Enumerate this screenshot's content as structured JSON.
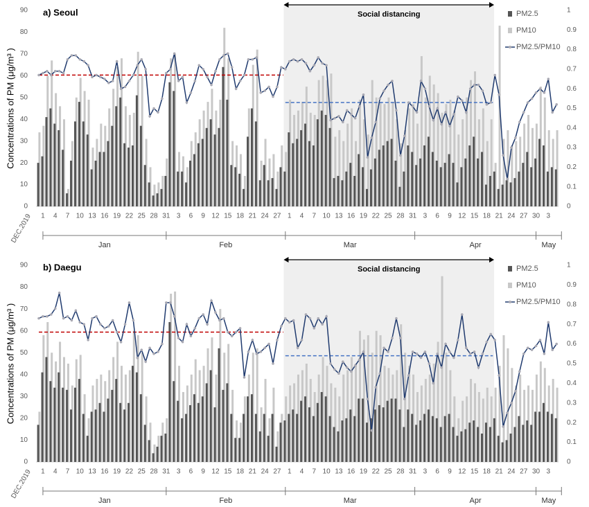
{
  "chart_data": [
    {
      "type": "bar_line",
      "title": "a) Seoul",
      "ylabel": "Concentrations of PM (μg/m³ )",
      "annotation": "Social distancing",
      "categories": [
        "DEC.2019",
        "1",
        null,
        null,
        "4",
        null,
        null,
        "7",
        null,
        null,
        "10",
        null,
        null,
        "13",
        null,
        null,
        "16",
        null,
        null,
        "19",
        null,
        null,
        "22",
        null,
        null,
        "25",
        null,
        null,
        "28",
        null,
        null,
        "31",
        null,
        null,
        "3",
        null,
        null,
        "6",
        null,
        null,
        "9",
        null,
        null,
        "12",
        null,
        null,
        "15",
        null,
        null,
        "18",
        null,
        null,
        "21",
        null,
        null,
        "24",
        null,
        null,
        "27",
        null,
        null,
        "1",
        null,
        null,
        "4",
        null,
        null,
        "7",
        null,
        null,
        "10",
        null,
        null,
        "13",
        null,
        null,
        "16",
        null,
        null,
        "19",
        null,
        null,
        "22",
        null,
        null,
        "25",
        null,
        null,
        "28",
        null,
        null,
        "31",
        null,
        null,
        "3",
        null,
        null,
        "6",
        null,
        null,
        "9",
        null,
        null,
        "12",
        null,
        null,
        "15",
        null,
        null,
        "18",
        null,
        null,
        "21",
        null,
        null,
        "24",
        null,
        null,
        "27",
        null,
        null,
        "30",
        null,
        null,
        "3",
        null,
        null
      ],
      "months": [
        "Jan",
        "Feb",
        "Mar",
        "Apr",
        "May"
      ],
      "ylim": [
        0,
        90
      ],
      "yticks": [
        0,
        10,
        20,
        30,
        40,
        50,
        60,
        70,
        80,
        90
      ],
      "y2lim": [
        0,
        1
      ],
      "y2ticks": [
        0,
        0.1,
        0.2,
        0.3,
        0.4,
        0.5,
        0.6,
        0.7,
        0.8,
        0.9,
        1
      ],
      "legend": "top-right",
      "reference_lines": [
        {
          "value": 0.67,
          "color": "#c00000",
          "axis": "y2"
        },
        {
          "value": 0.53,
          "color": "#4472c4",
          "axis": "y2"
        }
      ],
      "series": [
        {
          "name": "PM2.5",
          "type": "bar",
          "color": "#555555",
          "values": [
            20,
            23,
            41,
            45,
            38,
            35,
            26,
            6,
            21,
            39,
            48,
            39,
            33,
            17,
            21,
            25,
            25,
            30,
            37,
            46,
            50,
            29,
            27,
            28,
            51,
            37,
            19,
            11,
            5,
            6,
            8,
            14,
            57,
            53,
            16,
            16,
            11,
            21,
            24,
            29,
            31,
            36,
            40,
            33,
            36,
            64,
            49,
            19,
            18,
            15,
            8,
            32,
            45,
            39,
            12,
            19,
            12,
            13,
            8,
            18,
            16,
            34,
            29,
            31,
            35,
            38,
            30,
            28,
            40,
            44,
            42,
            36,
            13,
            14,
            12,
            16,
            20,
            14,
            24,
            18,
            8,
            17,
            22,
            26,
            28,
            30,
            31,
            21,
            9,
            16,
            28,
            25,
            19,
            22,
            28,
            32,
            25,
            21,
            18,
            20,
            24,
            20,
            11,
            18,
            22,
            28,
            32,
            22,
            25,
            10,
            14,
            16,
            8,
            10,
            12,
            11,
            13,
            16,
            20,
            25,
            18,
            22,
            31,
            28,
            16,
            18,
            17
          ]
        },
        {
          "name": "PM10",
          "type": "bar",
          "color": "#c8c8c8",
          "values": [
            34,
            37,
            60,
            67,
            52,
            46,
            40,
            8,
            30,
            50,
            59,
            53,
            49,
            27,
            31,
            38,
            37,
            45,
            54,
            64,
            68,
            46,
            42,
            43,
            71,
            60,
            31,
            18,
            10,
            11,
            14,
            22,
            68,
            70,
            25,
            23,
            18,
            30,
            34,
            40,
            44,
            48,
            54,
            44,
            49,
            82,
            68,
            30,
            28,
            24,
            14,
            45,
            65,
            72,
            21,
            31,
            22,
            24,
            16,
            28,
            25,
            49,
            42,
            44,
            48,
            55,
            43,
            42,
            58,
            60,
            58,
            61,
            32,
            35,
            30,
            38,
            45,
            30,
            49,
            40,
            33,
            58,
            50,
            48,
            47,
            50,
            48,
            40,
            29,
            35,
            45,
            47,
            38,
            69,
            50,
            60,
            56,
            52,
            43,
            47,
            49,
            44,
            33,
            40,
            50,
            58,
            62,
            40,
            45,
            30,
            40,
            20,
            83,
            31,
            35,
            28,
            30,
            32,
            38,
            42,
            36,
            38,
            55,
            50,
            35,
            31,
            35
          ]
        },
        {
          "name": "PM2.5/PM10",
          "type": "line",
          "axis": "y2",
          "color": "#1f3a6e",
          "marker_color": "#a9a9b3",
          "values": [
            0.67,
            0.68,
            0.69,
            0.67,
            0.69,
            0.69,
            0.68,
            0.75,
            0.77,
            0.77,
            0.75,
            0.74,
            0.72,
            0.66,
            0.67,
            0.66,
            0.65,
            0.63,
            0.64,
            0.74,
            0.6,
            0.61,
            0.64,
            0.67,
            0.72,
            0.75,
            0.7,
            0.46,
            0.5,
            0.48,
            0.55,
            0.68,
            0.7,
            0.78,
            0.64,
            0.66,
            0.53,
            0.58,
            0.64,
            0.72,
            0.7,
            0.66,
            0.62,
            0.69,
            0.75,
            0.77,
            0.78,
            0.71,
            0.6,
            0.64,
            0.67,
            0.75,
            0.75,
            0.76,
            0.58,
            0.59,
            0.61,
            0.56,
            0.61,
            0.71,
            0.7,
            0.74,
            0.75,
            0.74,
            0.75,
            0.73,
            0.69,
            0.72,
            0.76,
            0.73,
            0.72,
            0.44,
            0.45,
            0.46,
            0.43,
            0.49,
            0.47,
            0.45,
            0.51,
            0.57,
            0.25,
            0.35,
            0.43,
            0.55,
            0.59,
            0.62,
            0.64,
            0.49,
            0.26,
            0.36,
            0.53,
            0.51,
            0.48,
            0.64,
            0.6,
            0.51,
            0.44,
            0.5,
            0.42,
            0.48,
            0.41,
            0.47,
            0.56,
            0.54,
            0.48,
            0.6,
            0.62,
            0.62,
            0.59,
            0.52,
            0.53,
            0.67,
            0.57,
            0.26,
            0.14,
            0.3,
            0.35,
            0.43,
            0.48,
            0.53,
            0.55,
            0.58,
            0.6,
            0.58,
            0.65,
            0.48,
            0.52
          ]
        }
      ]
    },
    {
      "type": "bar_line",
      "title": "b) Daegu",
      "ylabel": "Concentrations of PM (μg/m³ )",
      "annotation": "Social distancing",
      "categories": [
        "DEC.2019",
        "1",
        null,
        null,
        "4",
        null,
        null,
        "7",
        null,
        null,
        "10",
        null,
        null,
        "13",
        null,
        null,
        "16",
        null,
        null,
        "19",
        null,
        null,
        "22",
        null,
        null,
        "25",
        null,
        null,
        "28",
        null,
        null,
        "31",
        null,
        null,
        "3",
        null,
        null,
        "6",
        null,
        null,
        "9",
        null,
        null,
        "12",
        null,
        null,
        "15",
        null,
        null,
        "18",
        null,
        null,
        "21",
        null,
        null,
        "24",
        null,
        null,
        "27",
        null,
        null,
        "1",
        null,
        null,
        "4",
        null,
        null,
        "7",
        null,
        null,
        "10",
        null,
        null,
        "13",
        null,
        null,
        "16",
        null,
        null,
        "19",
        null,
        null,
        "22",
        null,
        null,
        "25",
        null,
        null,
        "28",
        null,
        null,
        "31",
        null,
        null,
        "3",
        null,
        null,
        "6",
        null,
        null,
        "9",
        null,
        null,
        "12",
        null,
        null,
        "15",
        null,
        null,
        "18",
        null,
        null,
        "21",
        null,
        null,
        "24",
        null,
        null,
        "27",
        null,
        null,
        "30",
        null,
        null,
        "3",
        null,
        null
      ],
      "months": [
        "Jan",
        "Feb",
        "Mar",
        "Apr",
        "May"
      ],
      "ylim": [
        0,
        90
      ],
      "yticks": [
        0,
        10,
        20,
        30,
        40,
        50,
        60,
        70,
        80,
        90
      ],
      "y2lim": [
        0,
        1
      ],
      "y2ticks": [
        0,
        0.1,
        0.2,
        0.3,
        0.4,
        0.5,
        0.6,
        0.7,
        0.8,
        0.9,
        1
      ],
      "legend": "top-right",
      "reference_lines": [
        {
          "value": 0.66,
          "color": "#c00000",
          "axis": "y2"
        },
        {
          "value": 0.54,
          "color": "#4472c4",
          "axis": "y2"
        }
      ],
      "series": [
        {
          "name": "PM2.5",
          "type": "bar",
          "color": "#555555",
          "values": [
            17,
            41,
            48,
            37,
            34,
            41,
            34,
            33,
            24,
            34,
            38,
            22,
            12,
            23,
            24,
            27,
            23,
            29,
            33,
            38,
            27,
            24,
            27,
            44,
            41,
            31,
            17,
            10,
            4,
            7,
            12,
            13,
            64,
            37,
            28,
            20,
            22,
            26,
            31,
            27,
            30,
            36,
            42,
            25,
            52,
            33,
            36,
            22,
            11,
            11,
            22,
            30,
            31,
            22,
            14,
            22,
            12,
            22,
            7,
            18,
            19,
            22,
            24,
            22,
            28,
            30,
            25,
            21,
            27,
            32,
            30,
            21,
            16,
            14,
            19,
            20,
            24,
            21,
            29,
            29,
            18,
            20,
            24,
            26,
            25,
            28,
            29,
            29,
            24,
            16,
            24,
            22,
            17,
            19,
            22,
            24,
            21,
            20,
            16,
            21,
            22,
            16,
            12,
            14,
            15,
            18,
            19,
            16,
            13,
            18,
            16,
            20,
            12,
            9,
            10,
            13,
            16,
            21,
            17,
            19,
            17,
            23,
            23,
            27,
            23,
            22,
            20
          ]
        },
        {
          "name": "PM10",
          "type": "bar",
          "color": "#c8c8c8",
          "values": [
            23,
            58,
            64,
            50,
            46,
            55,
            48,
            45,
            35,
            47,
            49,
            31,
            20,
            35,
            38,
            40,
            37,
            42,
            48,
            55,
            44,
            40,
            42,
            60,
            58,
            50,
            30,
            18,
            8,
            12,
            18,
            20,
            77,
            78,
            44,
            32,
            35,
            40,
            47,
            42,
            44,
            52,
            57,
            40,
            70,
            50,
            54,
            33,
            19,
            18,
            30,
            40,
            50,
            52,
            25,
            38,
            20,
            34,
            14,
            22,
            30,
            35,
            36,
            40,
            42,
            45,
            38,
            32,
            40,
            48,
            44,
            36,
            34,
            30,
            40,
            42,
            48,
            45,
            60,
            56,
            58,
            50,
            60,
            58,
            44,
            43,
            40,
            42,
            63,
            50,
            44,
            40,
            32,
            35,
            38,
            40,
            45,
            55,
            85,
            50,
            42,
            30,
            20,
            28,
            30,
            38,
            36,
            32,
            29,
            34,
            30,
            34,
            44,
            58,
            52,
            43,
            35,
            40,
            33,
            35,
            33,
            40,
            46,
            43,
            35,
            38,
            34
          ]
        },
        {
          "name": "PM2.5/PM10",
          "type": "line",
          "axis": "y2",
          "color": "#1f3a6e",
          "marker_color": "#a9a9b3",
          "values": [
            0.73,
            0.74,
            0.74,
            0.75,
            0.78,
            0.86,
            0.73,
            0.74,
            0.72,
            0.77,
            0.71,
            0.7,
            0.62,
            0.73,
            0.74,
            0.7,
            0.68,
            0.69,
            0.72,
            0.66,
            0.61,
            0.7,
            0.81,
            0.72,
            0.53,
            0.57,
            0.51,
            0.58,
            0.55,
            0.56,
            0.6,
            0.81,
            0.81,
            0.74,
            0.63,
            0.61,
            0.7,
            0.64,
            0.68,
            0.73,
            0.75,
            0.7,
            0.82,
            0.76,
            0.72,
            0.73,
            0.66,
            0.64,
            0.66,
            0.68,
            0.43,
            0.56,
            0.62,
            0.55,
            0.56,
            0.58,
            0.6,
            0.5,
            0.62,
            0.69,
            0.73,
            0.71,
            0.72,
            0.58,
            0.62,
            0.75,
            0.73,
            0.68,
            0.73,
            0.7,
            0.74,
            0.5,
            0.47,
            0.45,
            0.51,
            0.48,
            0.46,
            0.49,
            0.52,
            0.56,
            0.32,
            0.16,
            0.38,
            0.45,
            0.58,
            0.56,
            0.63,
            0.73,
            0.63,
            0.32,
            0.44,
            0.56,
            0.55,
            0.53,
            0.56,
            0.5,
            0.4,
            0.55,
            0.48,
            0.6,
            0.56,
            0.53,
            0.62,
            0.75,
            0.58,
            0.55,
            0.56,
            0.48,
            0.55,
            0.61,
            0.65,
            0.62,
            0.44,
            0.18,
            0.25,
            0.3,
            0.36,
            0.46,
            0.55,
            0.58,
            0.57,
            0.59,
            0.62,
            0.55,
            0.71,
            0.57,
            0.6
          ]
        }
      ]
    }
  ]
}
